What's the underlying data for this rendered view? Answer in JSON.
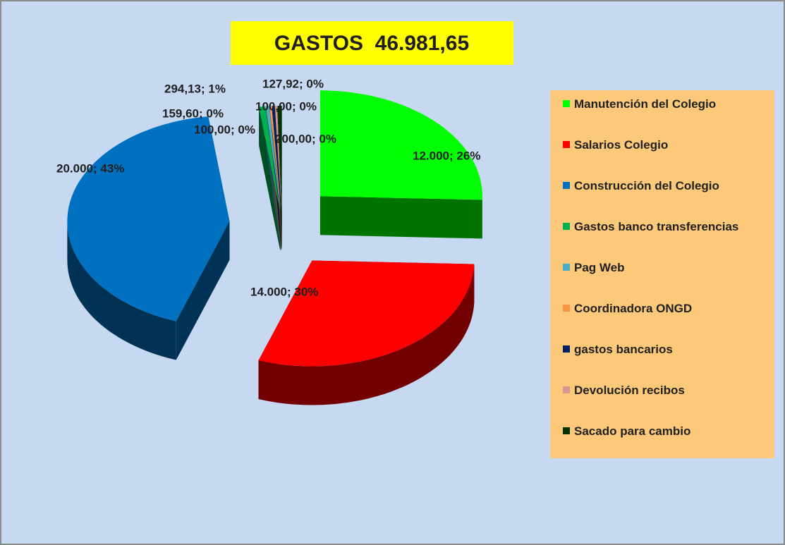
{
  "chart_data": {
    "type": "pie3d",
    "title": "GASTOS  46.981,65",
    "categories": [
      "Manutención del Colegio",
      "Salarios Colegio",
      "Construcción del Colegio",
      "Gastos banco transferencias",
      "Pag Web",
      "Coordinadora ONGD",
      "gastos bancarios",
      "Devolución recibos",
      "Sacado para cambio"
    ],
    "values": [
      12000,
      14000,
      20000,
      294.13,
      159.6,
      100.0,
      127.92,
      100.0,
      200.0
    ],
    "value_labels": [
      "12.000; 26%",
      "14.000; 30%",
      "20.000; 43%",
      "294,13; 1%",
      "159,60; 0%",
      "100,00; 0%",
      "127,92; 0%",
      "100,00; 0%",
      "200,00; 0%"
    ],
    "colors": [
      "#00ff00",
      "#ff0000",
      "#0070c0",
      "#00b050",
      "#4bacc6",
      "#f79646",
      "#002060",
      "#d99694",
      "#003300"
    ],
    "legend": "right"
  }
}
